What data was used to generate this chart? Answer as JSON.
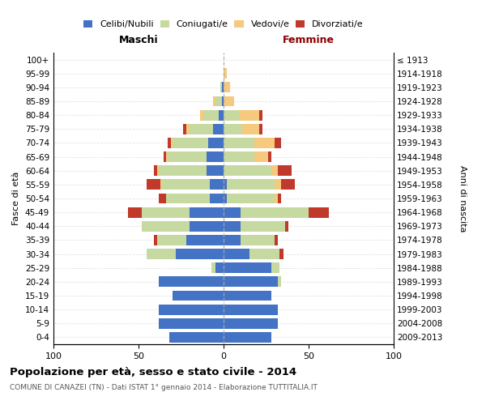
{
  "age_groups": [
    "0-4",
    "5-9",
    "10-14",
    "15-19",
    "20-24",
    "25-29",
    "30-34",
    "35-39",
    "40-44",
    "45-49",
    "50-54",
    "55-59",
    "60-64",
    "65-69",
    "70-74",
    "75-79",
    "80-84",
    "85-89",
    "90-94",
    "95-99",
    "100+"
  ],
  "birth_years": [
    "2009-2013",
    "2004-2008",
    "1999-2003",
    "1994-1998",
    "1989-1993",
    "1984-1988",
    "1979-1983",
    "1974-1978",
    "1969-1973",
    "1964-1968",
    "1959-1963",
    "1954-1958",
    "1949-1953",
    "1944-1948",
    "1939-1943",
    "1934-1938",
    "1929-1933",
    "1924-1928",
    "1919-1923",
    "1914-1918",
    "≤ 1913"
  ],
  "maschi": {
    "celibi": [
      32,
      38,
      38,
      30,
      38,
      5,
      28,
      22,
      20,
      20,
      8,
      8,
      10,
      10,
      9,
      6,
      3,
      1,
      1,
      0,
      0
    ],
    "coniugati": [
      0,
      0,
      0,
      0,
      0,
      2,
      17,
      17,
      28,
      28,
      26,
      28,
      28,
      23,
      21,
      14,
      9,
      4,
      1,
      0,
      0
    ],
    "vedovi": [
      0,
      0,
      0,
      0,
      0,
      0,
      0,
      0,
      0,
      0,
      0,
      1,
      1,
      1,
      1,
      2,
      2,
      1,
      0,
      0,
      0
    ],
    "divorziati": [
      0,
      0,
      0,
      0,
      0,
      0,
      0,
      2,
      0,
      8,
      4,
      8,
      2,
      1,
      2,
      2,
      0,
      0,
      0,
      0,
      0
    ]
  },
  "femmine": {
    "nubili": [
      28,
      32,
      32,
      28,
      32,
      28,
      15,
      10,
      10,
      10,
      2,
      2,
      0,
      0,
      0,
      0,
      0,
      0,
      0,
      0,
      0
    ],
    "coniugate": [
      0,
      0,
      0,
      0,
      2,
      5,
      18,
      20,
      26,
      40,
      28,
      28,
      28,
      18,
      18,
      11,
      9,
      0,
      0,
      0,
      0
    ],
    "vedove": [
      0,
      0,
      0,
      0,
      0,
      0,
      0,
      0,
      0,
      0,
      2,
      4,
      4,
      8,
      12,
      10,
      12,
      6,
      4,
      2,
      0
    ],
    "divorziate": [
      0,
      0,
      0,
      0,
      0,
      0,
      2,
      2,
      2,
      12,
      2,
      8,
      8,
      2,
      4,
      2,
      2,
      0,
      0,
      0,
      0
    ]
  },
  "colors": {
    "celibi_nubili": "#4472C4",
    "coniugati_e": "#c5d9a0",
    "vedovi_e": "#f5c97e",
    "divorziati_e": "#c0392b"
  },
  "xlim": 100,
  "title": "Popolazione per età, sesso e stato civile - 2014",
  "subtitle": "COMUNE DI CANAZEI (TN) - Dati ISTAT 1° gennaio 2014 - Elaborazione TUTTITALIA.IT",
  "ylabel_left": "Fasce di età",
  "ylabel_right": "Anni di nascita",
  "header_maschi": "Maschi",
  "header_femmine": "Femmine",
  "legend_labels": [
    "Celibi/Nubili",
    "Coniugati/e",
    "Vedovi/e",
    "Divorziati/e"
  ]
}
